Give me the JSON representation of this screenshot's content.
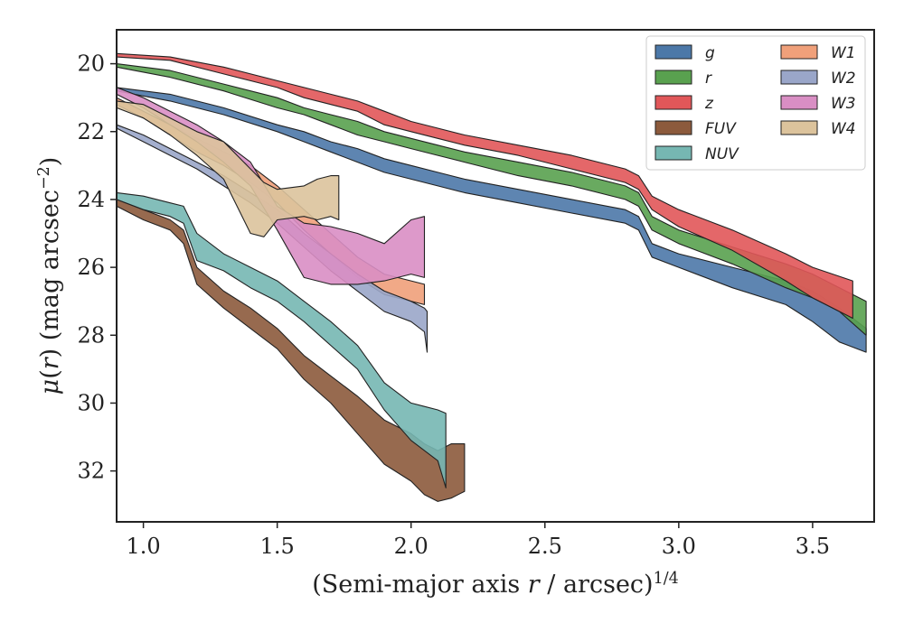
{
  "chart_data": {
    "type": "area",
    "xlabel": "(Semi-major axis $r$ / arcsec)$^{1/4}$",
    "ylabel": "$\\mu(r)$ (mag arcsec$^{-2}$)",
    "xlim": [
      0.9,
      3.73
    ],
    "ylim": [
      33.5,
      19.0
    ],
    "y_inverted": true,
    "x_ticks": [
      1.0,
      1.5,
      2.0,
      2.5,
      3.0,
      3.5
    ],
    "x_tick_labels": [
      "1.0",
      "1.5",
      "2.0",
      "2.5",
      "3.0",
      "3.5"
    ],
    "y_ticks": [
      20,
      22,
      24,
      26,
      28,
      30,
      32
    ],
    "y_tick_labels": [
      "20",
      "22",
      "24",
      "26",
      "28",
      "30",
      "32"
    ],
    "grid": false,
    "legend": {
      "placement": "top-right",
      "columns": 2
    },
    "series": [
      {
        "name": "g",
        "color": "#4c78a8",
        "x": [
          0.9,
          1.1,
          1.3,
          1.5,
          1.6,
          1.7,
          1.8,
          1.9,
          2.0,
          2.1,
          2.2,
          2.4,
          2.6,
          2.8,
          2.85,
          2.9,
          3.0,
          3.2,
          3.4,
          3.5,
          3.6,
          3.7
        ],
        "lo": [
          20.7,
          20.9,
          21.3,
          21.8,
          22.0,
          22.3,
          22.5,
          22.8,
          23.0,
          23.2,
          23.4,
          23.7,
          24.0,
          24.3,
          24.5,
          25.3,
          25.6,
          26.0,
          26.4,
          26.7,
          27.2,
          27.8
        ],
        "hi": [
          20.8,
          21.1,
          21.5,
          22.0,
          22.3,
          22.6,
          22.9,
          23.2,
          23.4,
          23.6,
          23.8,
          24.1,
          24.4,
          24.7,
          24.9,
          25.7,
          26.0,
          26.6,
          27.1,
          27.6,
          28.2,
          28.5
        ]
      },
      {
        "name": "r",
        "color": "#59a14f",
        "x": [
          0.9,
          1.1,
          1.3,
          1.5,
          1.6,
          1.7,
          1.8,
          1.9,
          2.0,
          2.1,
          2.2,
          2.4,
          2.6,
          2.8,
          2.85,
          2.9,
          3.0,
          3.2,
          3.4,
          3.5,
          3.6,
          3.7
        ],
        "lo": [
          20.0,
          20.2,
          20.6,
          21.0,
          21.3,
          21.5,
          21.7,
          22.0,
          22.2,
          22.4,
          22.6,
          22.9,
          23.2,
          23.6,
          23.8,
          24.5,
          24.9,
          25.4,
          25.9,
          26.2,
          26.6,
          27.0
        ],
        "hi": [
          20.1,
          20.4,
          20.8,
          21.3,
          21.5,
          21.8,
          22.1,
          22.3,
          22.5,
          22.7,
          22.9,
          23.3,
          23.6,
          24.0,
          24.2,
          24.9,
          25.3,
          25.9,
          26.6,
          26.9,
          27.3,
          28.0
        ]
      },
      {
        "name": "z",
        "color": "#e15759",
        "x": [
          0.9,
          1.1,
          1.3,
          1.5,
          1.6,
          1.7,
          1.8,
          1.9,
          2.0,
          2.1,
          2.2,
          2.4,
          2.6,
          2.8,
          2.85,
          2.9,
          3.0,
          3.2,
          3.4,
          3.5,
          3.65
        ],
        "lo": [
          19.7,
          19.8,
          20.1,
          20.5,
          20.7,
          20.9,
          21.1,
          21.4,
          21.7,
          21.9,
          22.1,
          22.4,
          22.7,
          23.1,
          23.3,
          23.9,
          24.3,
          24.9,
          25.6,
          26.0,
          26.4
        ],
        "hi": [
          19.8,
          19.9,
          20.3,
          20.7,
          21.0,
          21.2,
          21.4,
          21.8,
          22.0,
          22.2,
          22.4,
          22.7,
          23.1,
          23.5,
          23.7,
          24.3,
          24.8,
          25.5,
          26.4,
          26.9,
          27.5
        ]
      },
      {
        "name": "FUV",
        "color": "#8c5a3c",
        "x": [
          0.9,
          1.0,
          1.1,
          1.15,
          1.2,
          1.3,
          1.4,
          1.5,
          1.6,
          1.7,
          1.8,
          1.9,
          2.0,
          2.05,
          2.1,
          2.15,
          2.2
        ],
        "lo": [
          24.0,
          24.3,
          24.6,
          24.9,
          26.0,
          26.7,
          27.2,
          27.8,
          28.6,
          29.2,
          29.8,
          30.5,
          30.9,
          31.2,
          31.4,
          31.2,
          31.2
        ],
        "hi": [
          24.2,
          24.6,
          24.9,
          25.3,
          26.5,
          27.2,
          27.8,
          28.4,
          29.3,
          30.0,
          30.9,
          31.8,
          32.3,
          32.7,
          32.9,
          32.8,
          32.6
        ]
      },
      {
        "name": "NUV",
        "color": "#76b7b2",
        "x": [
          0.9,
          1.0,
          1.1,
          1.15,
          1.2,
          1.3,
          1.4,
          1.5,
          1.6,
          1.7,
          1.8,
          1.9,
          2.0,
          2.05,
          2.1,
          2.13
        ],
        "lo": [
          23.8,
          23.9,
          24.1,
          24.2,
          25.0,
          25.6,
          26.0,
          26.4,
          27.0,
          27.6,
          28.3,
          29.4,
          30.0,
          30.1,
          30.2,
          30.3
        ],
        "hi": [
          24.0,
          24.3,
          24.5,
          24.7,
          25.8,
          26.1,
          26.6,
          27.0,
          27.6,
          28.3,
          29.0,
          30.2,
          31.1,
          31.4,
          31.7,
          32.5
        ]
      },
      {
        "name": "W1",
        "color": "#f0a07a",
        "x": [
          0.9,
          1.0,
          1.1,
          1.2,
          1.3,
          1.4,
          1.5,
          1.6,
          1.7,
          1.8,
          1.9,
          2.0,
          2.05
        ],
        "lo": [
          21.0,
          21.4,
          21.8,
          22.2,
          22.6,
          23.0,
          23.6,
          24.3,
          25.0,
          25.7,
          26.2,
          26.4,
          26.5
        ],
        "hi": [
          21.2,
          21.6,
          22.1,
          22.6,
          23.0,
          23.5,
          24.1,
          24.9,
          25.6,
          26.3,
          26.8,
          27.0,
          27.1
        ]
      },
      {
        "name": "W2",
        "color": "#9aa6c9",
        "x": [
          0.9,
          1.0,
          1.1,
          1.2,
          1.3,
          1.4,
          1.5,
          1.6,
          1.7,
          1.8,
          1.9,
          2.0,
          2.05,
          2.06
        ],
        "lo": [
          21.8,
          22.1,
          22.5,
          22.9,
          23.3,
          23.8,
          24.3,
          25.0,
          25.6,
          26.2,
          26.7,
          27.0,
          27.2,
          27.3
        ],
        "hi": [
          21.9,
          22.3,
          22.7,
          23.1,
          23.6,
          24.1,
          24.7,
          25.4,
          26.1,
          26.7,
          27.3,
          27.6,
          27.9,
          28.5
        ]
      },
      {
        "name": "W3",
        "color": "#d98ec4",
        "x": [
          0.9,
          1.0,
          1.1,
          1.2,
          1.3,
          1.4,
          1.5,
          1.6,
          1.7,
          1.8,
          1.9,
          2.0,
          2.05
        ],
        "lo": [
          20.7,
          21.0,
          21.4,
          21.8,
          22.3,
          22.9,
          24.2,
          24.7,
          24.8,
          25.0,
          25.3,
          24.6,
          24.5
        ],
        "hi": [
          20.9,
          21.3,
          21.8,
          22.3,
          22.9,
          23.6,
          24.9,
          26.3,
          26.5,
          26.5,
          26.4,
          26.2,
          26.3
        ]
      },
      {
        "name": "W4",
        "color": "#dcc39c",
        "x": [
          0.9,
          1.0,
          1.1,
          1.2,
          1.3,
          1.4,
          1.45,
          1.5,
          1.6,
          1.65,
          1.7,
          1.73
        ],
        "lo": [
          21.1,
          21.2,
          21.6,
          22.0,
          22.3,
          23.1,
          23.5,
          23.7,
          23.6,
          23.4,
          23.3,
          23.3
        ],
        "hi": [
          21.3,
          21.6,
          22.1,
          22.7,
          23.4,
          25.0,
          25.1,
          24.6,
          24.5,
          24.6,
          24.5,
          24.6
        ]
      }
    ]
  }
}
